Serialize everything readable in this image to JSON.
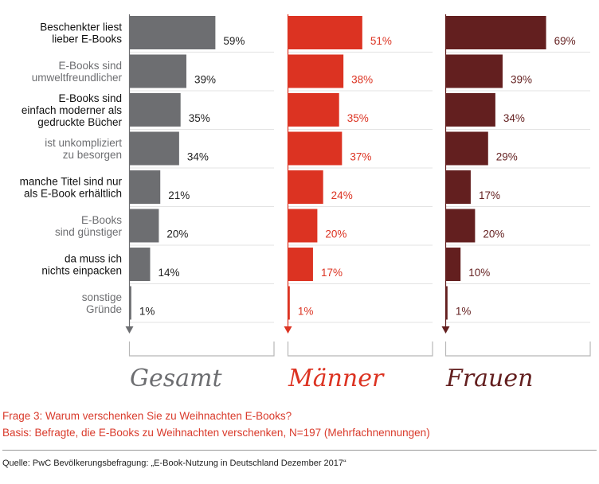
{
  "chart_data": {
    "type": "bar",
    "orientation": "horizontal",
    "categories": [
      "Beschenkter liest lieber E-Books",
      "E-Books sind umweltfreundlicher",
      "E-Books sind einfach moderner als gedruckte Bücher",
      "ist unkompliziert zu besorgen",
      "manche Titel sind nur als E-Book erhältlich",
      "E-Books sind günstiger",
      "da muss ich nichts einpacken",
      "sonstige Gründe"
    ],
    "category_lines": [
      [
        "Beschenkter liest",
        "lieber E-Books"
      ],
      [
        "E-Books sind",
        "umweltfreundlicher"
      ],
      [
        "E-Books sind",
        "einfach moderner als",
        "gedruckte Bücher"
      ],
      [
        "ist unkompliziert",
        "zu besorgen"
      ],
      [
        "manche Titel sind nur",
        "als E-Book erhältlich"
      ],
      [
        "E-Books",
        "sind günstiger"
      ],
      [
        "da muss ich",
        "nichts einpacken"
      ],
      [
        "sonstige",
        "Gründe"
      ]
    ],
    "category_emphasis": [
      true,
      false,
      true,
      false,
      true,
      false,
      true,
      false
    ],
    "series": [
      {
        "name": "Gesamt",
        "color": "#6d6e71",
        "label_color": "#222222",
        "values": [
          59,
          39,
          35,
          34,
          21,
          20,
          14,
          1
        ]
      },
      {
        "name": "Männer",
        "color": "#dc3322",
        "label_color": "#dc3322",
        "values": [
          51,
          38,
          35,
          37,
          24,
          20,
          17,
          1
        ]
      },
      {
        "name": "Frauen",
        "color": "#631f1f",
        "label_color": "#631f1f",
        "values": [
          69,
          39,
          34,
          29,
          17,
          20,
          10,
          1
        ]
      }
    ],
    "value_suffix": "%",
    "xlim": [
      0,
      100
    ],
    "grid": true,
    "legend": "bottom, below each panel"
  },
  "footer": {
    "question": "Frage 3: Warum verschenken Sie zu Weihnachten E-Books?",
    "basis": "Basis: Befragte, die E-Books zu Weihnachten verschenken, N=197 (Mehrfachnennungen)",
    "source": "Quelle: PwC Bevölkerungsbefragung: „E-Book-Nutzung in Deutschland Dezember 2017“"
  }
}
